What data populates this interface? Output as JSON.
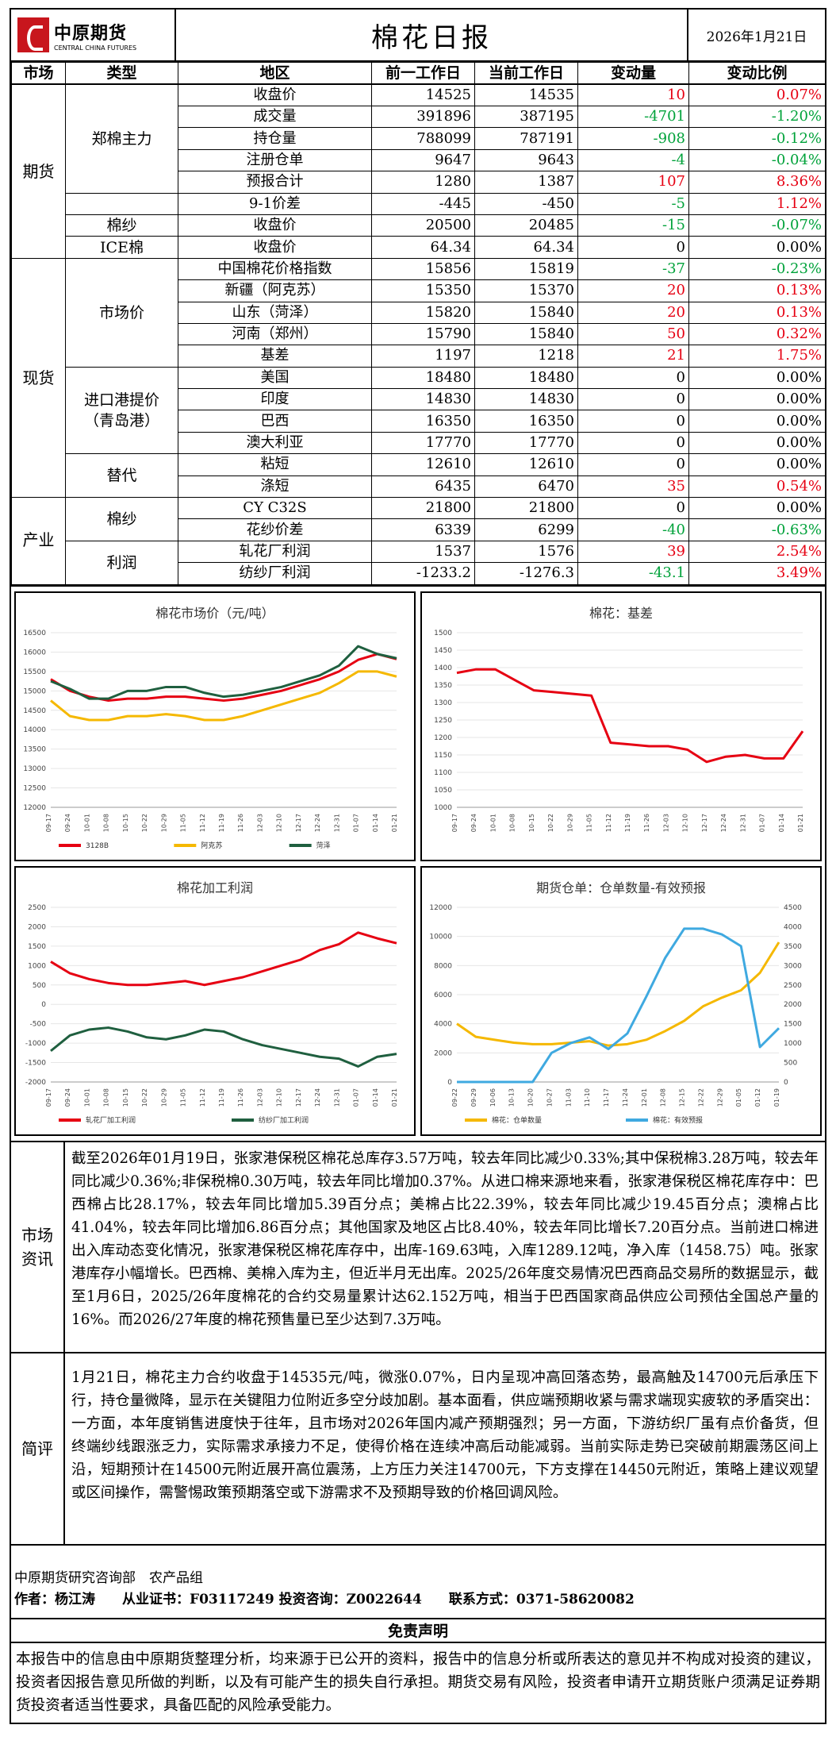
{
  "header": {
    "logo_cn": "中原期货",
    "logo_en": "CENTRAL CHINA FUTURES",
    "title": "棉花日报",
    "date": "2026年1月21日"
  },
  "table": {
    "columns": [
      "市场",
      "类型",
      "地区",
      "前一工作日",
      "当前工作日",
      "变动量",
      "变动比例"
    ],
    "sections": {
      "futures": "期货",
      "spot": "现货",
      "industry": "产业"
    },
    "groups": {
      "zz": "郑棉主力",
      "ys": "棉纱",
      "ice": "ICE棉",
      "scj": "市场价",
      "jkg": "进口港提价\n（青岛港）",
      "td": "替代",
      "mians": "棉纱",
      "lr": "利润"
    },
    "rows": [
      {
        "name": "收盘价",
        "prev": "14525",
        "curr": "14535",
        "chg": "10",
        "pct": "0.07%",
        "color": "red"
      },
      {
        "name": "成交量",
        "prev": "391896",
        "curr": "387195",
        "chg": "-4701",
        "pct": "-1.20%",
        "color": "green"
      },
      {
        "name": "持仓量",
        "prev": "788099",
        "curr": "787191",
        "chg": "-908",
        "pct": "-0.12%",
        "color": "green"
      },
      {
        "name": "注册仓单",
        "prev": "9647",
        "curr": "9643",
        "chg": "-4",
        "pct": "-0.04%",
        "color": "green"
      },
      {
        "name": "预报合计",
        "prev": "1280",
        "curr": "1387",
        "chg": "107",
        "pct": "8.36%",
        "color": "red"
      },
      {
        "name": "9-1价差",
        "prev": "-445",
        "curr": "-450",
        "chg": "-5",
        "pct": "1.12%",
        "color": "mixed"
      },
      {
        "name": "收盘价",
        "prev": "20500",
        "curr": "20485",
        "chg": "-15",
        "pct": "-0.07%",
        "color": "green"
      },
      {
        "name": "收盘价",
        "prev": "64.34",
        "curr": "64.34",
        "chg": "0",
        "pct": "0.00%",
        "color": "black"
      },
      {
        "name": "中国棉花价格指数",
        "prev": "15856",
        "curr": "15819",
        "chg": "-37",
        "pct": "-0.23%",
        "color": "green"
      },
      {
        "name": "新疆（阿克苏）",
        "prev": "15350",
        "curr": "15370",
        "chg": "20",
        "pct": "0.13%",
        "color": "red"
      },
      {
        "name": "山东（菏泽）",
        "prev": "15820",
        "curr": "15840",
        "chg": "20",
        "pct": "0.13%",
        "color": "red"
      },
      {
        "name": "河南（郑州）",
        "prev": "15790",
        "curr": "15840",
        "chg": "50",
        "pct": "0.32%",
        "color": "red"
      },
      {
        "name": "基差",
        "prev": "1197",
        "curr": "1218",
        "chg": "21",
        "pct": "1.75%",
        "color": "red"
      },
      {
        "name": "美国",
        "prev": "18480",
        "curr": "18480",
        "chg": "0",
        "pct": "0.00%",
        "color": "black"
      },
      {
        "name": "印度",
        "prev": "14830",
        "curr": "14830",
        "chg": "0",
        "pct": "0.00%",
        "color": "black"
      },
      {
        "name": "巴西",
        "prev": "16350",
        "curr": "16350",
        "chg": "0",
        "pct": "0.00%",
        "color": "black"
      },
      {
        "name": "澳大利亚",
        "prev": "17770",
        "curr": "17770",
        "chg": "0",
        "pct": "0.00%",
        "color": "black"
      },
      {
        "name": "粘短",
        "prev": "12610",
        "curr": "12610",
        "chg": "0",
        "pct": "0.00%",
        "color": "black"
      },
      {
        "name": "涤短",
        "prev": "6435",
        "curr": "6470",
        "chg": "35",
        "pct": "0.54%",
        "color": "red"
      },
      {
        "name": "CY C32S",
        "prev": "21800",
        "curr": "21800",
        "chg": "0",
        "pct": "0.00%",
        "color": "black"
      },
      {
        "name": "花纱价差",
        "prev": "6339",
        "curr": "6299",
        "chg": "-40",
        "pct": "-0.63%",
        "color": "green"
      },
      {
        "name": "轧花厂利润",
        "prev": "1537",
        "curr": "1576",
        "chg": "39",
        "pct": "2.54%",
        "color": "red"
      },
      {
        "name": "纺纱厂利润",
        "prev": "-1233.2",
        "curr": "-1276.3",
        "chg": "-43.1",
        "pct": "3.49%",
        "color": "mixed"
      }
    ]
  },
  "chart_data": [
    {
      "type": "line",
      "title": "棉花市场价（元/吨）",
      "categories": [
        "09-17",
        "09-24",
        "10-01",
        "10-08",
        "10-15",
        "10-22",
        "10-29",
        "11-05",
        "11-12",
        "11-19",
        "11-26",
        "12-03",
        "12-10",
        "12-17",
        "12-24",
        "12-31",
        "01-07",
        "01-14",
        "01-21"
      ],
      "ylim": [
        12000,
        16500
      ],
      "yticks": [
        12000,
        12500,
        13000,
        13500,
        14000,
        14500,
        15000,
        15500,
        16000,
        16500
      ],
      "series": [
        {
          "name": "3128B",
          "color": "#e60012",
          "values": [
            15300,
            15000,
            14850,
            14750,
            14800,
            14800,
            14850,
            14850,
            14800,
            14750,
            14800,
            14900,
            15000,
            15150,
            15300,
            15500,
            15800,
            15950,
            15820
          ]
        },
        {
          "name": "阿克苏",
          "color": "#f5b800",
          "values": [
            14750,
            14350,
            14250,
            14250,
            14350,
            14350,
            14400,
            14350,
            14250,
            14250,
            14350,
            14500,
            14650,
            14800,
            14950,
            15200,
            15500,
            15500,
            15370
          ]
        },
        {
          "name": "菏泽",
          "color": "#1f5f3f",
          "values": [
            15250,
            15050,
            14800,
            14800,
            15000,
            15000,
            15100,
            15100,
            14950,
            14850,
            14900,
            15000,
            15100,
            15250,
            15400,
            15650,
            16150,
            15950,
            15840
          ]
        }
      ]
    },
    {
      "type": "line",
      "title": "棉花：基差",
      "categories": [
        "09-17",
        "09-24",
        "10-01",
        "10-08",
        "10-15",
        "10-22",
        "10-29",
        "11-05",
        "11-12",
        "11-19",
        "11-26",
        "12-03",
        "12-10",
        "12-17",
        "12-24",
        "12-31",
        "01-07",
        "01-14",
        "01-21"
      ],
      "ylim": [
        1000,
        1500
      ],
      "yticks": [
        1000,
        1050,
        1100,
        1150,
        1200,
        1250,
        1300,
        1350,
        1400,
        1450,
        1500
      ],
      "series": [
        {
          "name": "基差",
          "color": "#e60012",
          "values": [
            1385,
            1395,
            1395,
            1365,
            1335,
            1330,
            1325,
            1320,
            1185,
            1180,
            1175,
            1175,
            1165,
            1130,
            1145,
            1150,
            1140,
            1140,
            1218
          ]
        }
      ]
    },
    {
      "type": "line",
      "title": "棉花加工利润",
      "categories": [
        "09-17",
        "09-24",
        "10-01",
        "10-08",
        "10-15",
        "10-22",
        "10-29",
        "11-05",
        "11-12",
        "11-19",
        "11-26",
        "12-03",
        "12-10",
        "12-17",
        "12-24",
        "12-31",
        "01-07",
        "01-14",
        "01-21"
      ],
      "ylim": [
        -2000,
        2500
      ],
      "yticks": [
        -2000,
        -1500,
        -1000,
        -500,
        0,
        500,
        1000,
        1500,
        2000,
        2500
      ],
      "series": [
        {
          "name": "轧花厂加工利润",
          "color": "#e60012",
          "values": [
            1100,
            800,
            650,
            550,
            500,
            500,
            550,
            600,
            500,
            600,
            700,
            850,
            1000,
            1150,
            1400,
            1550,
            1850,
            1700,
            1576
          ]
        },
        {
          "name": "纺纱厂加工利润",
          "color": "#1f5f3f",
          "values": [
            -1200,
            -800,
            -650,
            -600,
            -700,
            -850,
            -900,
            -800,
            -650,
            -700,
            -900,
            -1050,
            -1150,
            -1250,
            -1350,
            -1400,
            -1600,
            -1350,
            -1276
          ]
        }
      ]
    },
    {
      "type": "line",
      "title": "期货仓单：仓单数量-有效预报",
      "categories": [
        "09-22",
        "09-29",
        "10-06",
        "10-13",
        "10-20",
        "10-27",
        "11-03",
        "11-10",
        "11-17",
        "11-24",
        "12-01",
        "12-08",
        "12-15",
        "12-22",
        "12-29",
        "01-05",
        "01-12",
        "01-19"
      ],
      "ylim": [
        0,
        12000
      ],
      "y2lim": [
        0,
        4500
      ],
      "yticks": [
        0,
        2000,
        4000,
        6000,
        8000,
        10000,
        12000
      ],
      "y2ticks": [
        0,
        500,
        1000,
        1500,
        2000,
        2500,
        3000,
        3500,
        4000,
        4500
      ],
      "series": [
        {
          "name": "棉花：仓单数量",
          "color": "#f5b800",
          "axis": "left",
          "values": [
            4000,
            3100,
            2900,
            2700,
            2600,
            2600,
            2700,
            2800,
            2500,
            2600,
            2900,
            3500,
            4200,
            5200,
            5800,
            6300,
            7500,
            9600
          ]
        },
        {
          "name": "棉花：有效预报",
          "color": "#3fa9e0",
          "axis": "right",
          "values": [
            0,
            0,
            0,
            0,
            0,
            750,
            1000,
            1150,
            850,
            1250,
            2200,
            3200,
            3950,
            3950,
            3800,
            3500,
            900,
            1387
          ]
        }
      ]
    }
  ],
  "news": {
    "label": "市场资讯",
    "text": "截至2026年01月19日，张家港保税区棉花总库存3.57万吨，较去年同比减少0.33%;其中保税棉3.28万吨，较去年同比减少0.36%;非保税棉0.30万吨，较去年同比增加0.37%。从进口棉来源地来看，张家港保税区棉花库存中：巴西棉占比28.17%，较去年同比增加5.39百分点；美棉占比22.39%，较去年同比减少19.45百分点；澳棉占比41.04%，较去年同比增加6.86百分点；其他国家及地区占比8.40%，较去年同比增长7.20百分点。当前进口棉进出入库动态变化情况，张家港保税区棉花库存中，出库-169.63吨，入库1289.12吨，净入库（1458.75）吨。张家港库存小幅增长。巴西棉、美棉入库为主，但近半月无出库。2025/26年度交易情况巴西商品交易所的数据显示，截至1月6日，2025/26年度棉花的合约交易量累计达62.152万吨，相当于巴西国家商品供应公司预估全国总产量的16%。而2026/27年度的棉花预售量已至少达到7.3万吨。"
  },
  "comment": {
    "label": "简评",
    "text": "1月21日，棉花主力合约收盘于14535元/吨，微涨0.07%，日内呈现冲高回落态势，最高触及14700元后承压下行，持仓量微降，显示在关键阻力位附近多空分歧加剧。基本面看，供应端预期收紧与需求端现实疲软的矛盾突出：一方面，本年度销售进度快于往年，且市场对2026年国内减产预期强烈；另一方面，下游纺织厂虽有点价备货，但终端纱线跟涨乏力，实际需求承接力不足，使得价格在连续冲高后动能减弱。当前实际走势已突破前期震荡区间上沿，短期预计在14500元附近展开高位震荡，上方压力关注14700元，下方支撑在14450元附近，策略上建议观望或区间操作，需警惕政策预期落空或下游需求不及预期导致的价格回调风险。"
  },
  "footer": {
    "dept": "中原期货研究咨询部　农产品组",
    "author": "作者：杨江涛　　从业证书：F03117249  投资咨询：Z0022644　　联系方式：0371-58620082"
  },
  "disclaimer": {
    "title": "免责声明",
    "text": "本报告中的信息由中原期货整理分析，均来源于已公开的资料，报告中的信息分析或所表达的意见并不构成对投资的建议，投资者因报告意见所做的判断，以及有可能产生的损失自行承担。期货交易有风险，投资者申请开立期货账户须满足证券期货投资者适当性要求，具备匹配的风险承受能力。"
  }
}
